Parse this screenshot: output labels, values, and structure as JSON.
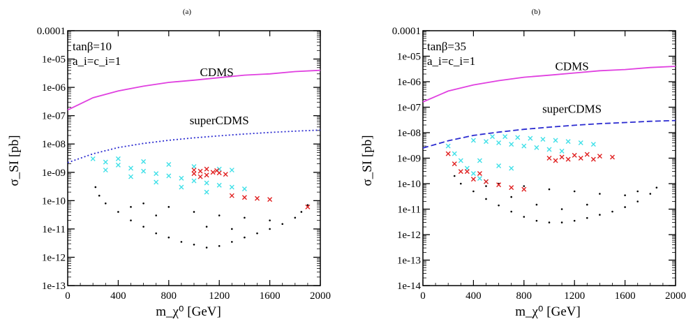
{
  "chart_data": [
    {
      "type": "scatter",
      "panel_tag": "(a)",
      "xlabel": "m_χ⁰ [GeV]",
      "ylabel": "σ_SI [pb]",
      "xlim": [
        0,
        2000
      ],
      "ylim_log10": [
        -13,
        -4
      ],
      "yscale": "log",
      "xticks": [
        "0",
        "400",
        "800",
        "1200",
        "1600",
        "2000"
      ],
      "yticks": [
        "1e-13",
        "1e-12",
        "1e-11",
        "1e-10",
        "1e-09",
        "1e-08",
        "1e-07",
        "1e-06",
        "1e-05",
        "0.0001"
      ],
      "annotations": [
        "tanβ=10",
        "a_i=c_i=1"
      ],
      "ref_lines": [
        {
          "name": "CDMS",
          "color": "#e040e0",
          "style": "solid",
          "label_at": [
            1180,
            2.5e-06
          ],
          "x": [
            0,
            200,
            400,
            600,
            800,
            1000,
            1200,
            1400,
            1600,
            1800,
            2000
          ],
          "y": [
            1.6e-07,
            4.3e-07,
            7.5e-07,
            1.1e-06,
            1.5e-06,
            1.8e-06,
            2.2e-06,
            2.7e-06,
            3e-06,
            3.6e-06,
            4e-06
          ]
        },
        {
          "name": "superCDMS",
          "color": "#2a2ad0",
          "style": "dotted",
          "label_at": [
            1200,
            5e-08
          ],
          "x": [
            0,
            200,
            400,
            600,
            800,
            1000,
            1200,
            1400,
            1600,
            1800,
            2000
          ],
          "y": [
            2.2e-09,
            4.5e-09,
            7.5e-09,
            1.05e-08,
            1.35e-08,
            1.65e-08,
            1.95e-08,
            2.25e-08,
            2.55e-08,
            2.85e-08,
            3.1e-08
          ]
        }
      ],
      "series": [
        {
          "color": "#000000",
          "marker": "dot",
          "points": [
            [
              220,
              3e-10
            ],
            [
              250,
              1.5e-10
            ],
            [
              300,
              8e-11
            ],
            [
              400,
              4e-11
            ],
            [
              500,
              2e-11
            ],
            [
              600,
              1.2e-11
            ],
            [
              700,
              7e-12
            ],
            [
              800,
              5e-12
            ],
            [
              900,
              3.5e-12
            ],
            [
              1000,
              2.8e-12
            ],
            [
              1100,
              2.2e-12
            ],
            [
              1200,
              2.5e-12
            ],
            [
              1300,
              3.5e-12
            ],
            [
              1400,
              5e-12
            ],
            [
              1500,
              7e-12
            ],
            [
              1600,
              1e-11
            ],
            [
              1700,
              1.5e-11
            ],
            [
              1800,
              2.5e-11
            ],
            [
              1850,
              4e-11
            ],
            [
              1900,
              7e-11
            ],
            [
              600,
              8e-11
            ],
            [
              800,
              6e-11
            ],
            [
              1000,
              4e-11
            ],
            [
              1200,
              3e-11
            ],
            [
              1400,
              2.5e-11
            ],
            [
              1600,
              2e-11
            ],
            [
              700,
              3e-11
            ],
            [
              1100,
              1.2e-11
            ],
            [
              1300,
              1e-11
            ],
            [
              500,
              6e-11
            ]
          ]
        },
        {
          "color": "#40e0e8",
          "marker": "x",
          "points": [
            [
              200,
              3e-09
            ],
            [
              300,
              2.3e-09
            ],
            [
              400,
              1.8e-09
            ],
            [
              500,
              1.4e-09
            ],
            [
              600,
              1.1e-09
            ],
            [
              700,
              9e-10
            ],
            [
              800,
              7.5e-10
            ],
            [
              900,
              6.2e-10
            ],
            [
              1000,
              5e-10
            ],
            [
              1100,
              4.2e-10
            ],
            [
              1200,
              3.5e-10
            ],
            [
              1300,
              3e-10
            ],
            [
              1400,
              2.6e-10
            ],
            [
              300,
              1.2e-09
            ],
            [
              500,
              7e-10
            ],
            [
              700,
              4.5e-10
            ],
            [
              900,
              3e-10
            ],
            [
              1100,
              2e-10
            ],
            [
              400,
              3e-09
            ],
            [
              600,
              2.4e-09
            ],
            [
              800,
              1.9e-09
            ],
            [
              1000,
              1.6e-09
            ],
            [
              1200,
              1.3e-09
            ],
            [
              1300,
              1.2e-09
            ]
          ]
        },
        {
          "color": "#e02020",
          "marker": "x",
          "points": [
            [
              1000,
              9e-10
            ],
            [
              1050,
              1.1e-09
            ],
            [
              1100,
              8e-10
            ],
            [
              1150,
              1e-09
            ],
            [
              1200,
              9.5e-10
            ],
            [
              1250,
              8.5e-10
            ],
            [
              1000,
              1.2e-09
            ],
            [
              1100,
              1.3e-09
            ],
            [
              1050,
              7e-10
            ],
            [
              1180,
              1.15e-09
            ],
            [
              1300,
              1.5e-10
            ],
            [
              1400,
              1.3e-10
            ],
            [
              1500,
              1.2e-10
            ],
            [
              1600,
              1.1e-10
            ],
            [
              1900,
              6e-11
            ]
          ]
        }
      ]
    },
    {
      "type": "scatter",
      "panel_tag": "(b)",
      "xlabel": "m_χ⁰ [GeV]",
      "ylabel": "σ_SI [pb]",
      "xlim": [
        0,
        2000
      ],
      "ylim_log10": [
        -14,
        -4
      ],
      "yscale": "log",
      "xticks": [
        "0",
        "400",
        "800",
        "1200",
        "1600",
        "2000"
      ],
      "yticks": [
        "1e-14",
        "1e-13",
        "1e-12",
        "1e-11",
        "1e-10",
        "1e-09",
        "1e-08",
        "1e-07",
        "1e-06",
        "1e-05",
        "0.0001"
      ],
      "annotations": [
        "tanβ=35",
        "a_i=c_i=1"
      ],
      "ref_lines": [
        {
          "name": "CDMS",
          "color": "#e040e0",
          "style": "solid",
          "label_at": [
            1180,
            2.8e-06
          ],
          "x": [
            0,
            200,
            400,
            600,
            800,
            1000,
            1200,
            1400,
            1600,
            1800,
            2000
          ],
          "y": [
            1.6e-07,
            4.3e-07,
            7.5e-07,
            1.1e-06,
            1.5e-06,
            1.8e-06,
            2.2e-06,
            2.7e-06,
            3e-06,
            3.6e-06,
            4e-06
          ]
        },
        {
          "name": "superCDMS",
          "color": "#2a2ad0",
          "style": "dashed",
          "label_at": [
            1180,
            6e-08
          ],
          "x": [
            0,
            200,
            400,
            600,
            800,
            1000,
            1200,
            1400,
            1600,
            1800,
            2000
          ],
          "y": [
            2.5e-09,
            4.8e-09,
            7.8e-09,
            1.05e-08,
            1.35e-08,
            1.65e-08,
            1.95e-08,
            2.25e-08,
            2.5e-08,
            2.8e-08,
            3e-08
          ]
        }
      ],
      "series": [
        {
          "color": "#000000",
          "marker": "dot",
          "points": [
            [
              250,
              2e-10
            ],
            [
              300,
              1e-10
            ],
            [
              400,
              5e-11
            ],
            [
              500,
              2.5e-11
            ],
            [
              600,
              1.4e-11
            ],
            [
              700,
              8e-12
            ],
            [
              800,
              5e-12
            ],
            [
              900,
              3.5e-12
            ],
            [
              1000,
              3e-12
            ],
            [
              1100,
              3e-12
            ],
            [
              1200,
              3.5e-12
            ],
            [
              1300,
              4.5e-12
            ],
            [
              1400,
              6e-12
            ],
            [
              1500,
              8e-12
            ],
            [
              1600,
              1.2e-11
            ],
            [
              1700,
              2e-11
            ],
            [
              1800,
              4e-11
            ],
            [
              1850,
              7e-11
            ],
            [
              600,
              1e-10
            ],
            [
              800,
              8e-11
            ],
            [
              1000,
              6e-11
            ],
            [
              1200,
              5e-11
            ],
            [
              1400,
              4e-11
            ],
            [
              1600,
              3.5e-11
            ],
            [
              700,
              3e-11
            ],
            [
              900,
              1.5e-11
            ],
            [
              1100,
              1e-11
            ],
            [
              1300,
              1.5e-11
            ],
            [
              500,
              8e-11
            ],
            [
              1700,
              5e-11
            ]
          ]
        },
        {
          "color": "#40e0e8",
          "marker": "x",
          "points": [
            [
              200,
              3e-09
            ],
            [
              250,
              1.5e-09
            ],
            [
              300,
              8e-10
            ],
            [
              350,
              4e-10
            ],
            [
              400,
              2.5e-10
            ],
            [
              450,
              1.6e-10
            ],
            [
              500,
              1.2e-10
            ],
            [
              400,
              5e-09
            ],
            [
              500,
              4.5e-09
            ],
            [
              600,
              4e-09
            ],
            [
              700,
              3.5e-09
            ],
            [
              800,
              3e-09
            ],
            [
              900,
              2.6e-09
            ],
            [
              1000,
              2.2e-09
            ],
            [
              1100,
              1.9e-09
            ],
            [
              550,
              7e-09
            ],
            [
              650,
              7e-09
            ],
            [
              750,
              6.5e-09
            ],
            [
              850,
              6e-09
            ],
            [
              950,
              5.5e-09
            ],
            [
              1050,
              5e-09
            ],
            [
              1150,
              4.5e-09
            ],
            [
              1250,
              4e-09
            ],
            [
              1350,
              3.5e-09
            ],
            [
              450,
              8e-10
            ],
            [
              600,
              5e-10
            ],
            [
              700,
              4e-10
            ]
          ]
        },
        {
          "color": "#e02020",
          "marker": "x",
          "points": [
            [
              200,
              1.5e-09
            ],
            [
              250,
              6e-10
            ],
            [
              300,
              3e-10
            ],
            [
              400,
              1.5e-10
            ],
            [
              500,
              1.2e-10
            ],
            [
              600,
              9e-11
            ],
            [
              700,
              7e-11
            ],
            [
              800,
              6e-11
            ],
            [
              350,
              3e-10
            ],
            [
              450,
              2.5e-10
            ],
            [
              1000,
              1e-09
            ],
            [
              1100,
              1.1e-09
            ],
            [
              1200,
              1.3e-09
            ],
            [
              1300,
              1.4e-09
            ],
            [
              1400,
              1.2e-09
            ],
            [
              1500,
              1.1e-09
            ],
            [
              1150,
              9e-10
            ],
            [
              1250,
              1e-09
            ],
            [
              1350,
              9e-10
            ],
            [
              1050,
              8e-10
            ]
          ]
        }
      ]
    }
  ]
}
